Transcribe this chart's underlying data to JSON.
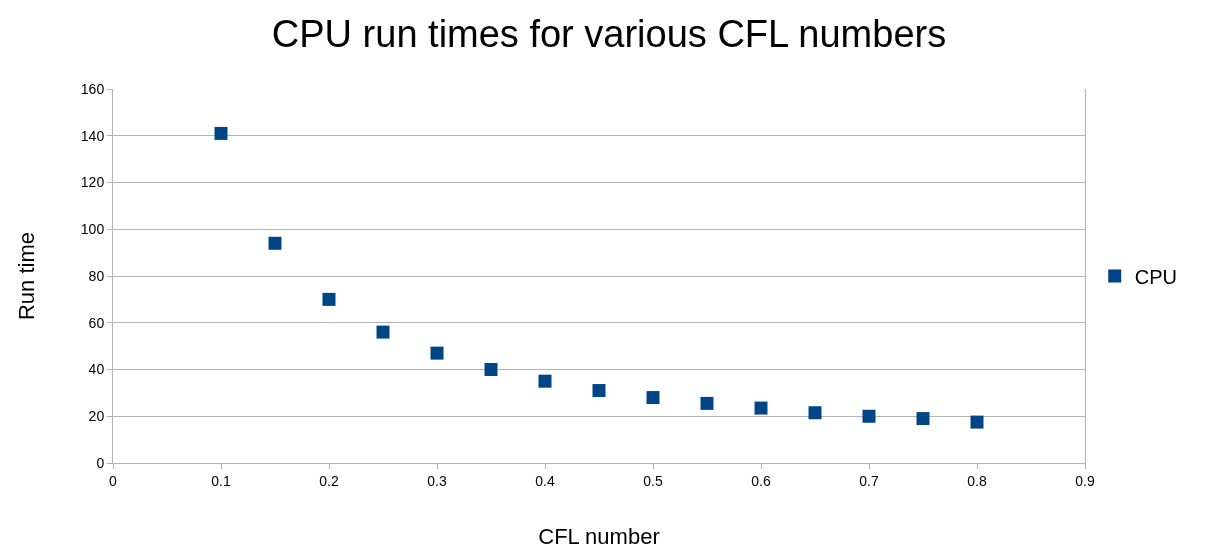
{
  "chart_data": {
    "type": "scatter",
    "title": "CPU run times for various CFL numbers",
    "xlabel": "CFL number",
    "ylabel": "Run time",
    "x": [
      0.1,
      0.15,
      0.2,
      0.25,
      0.3,
      0.35,
      0.4,
      0.45,
      0.5,
      0.55,
      0.6,
      0.65,
      0.7,
      0.75,
      0.8
    ],
    "series": [
      {
        "name": "CPU",
        "color": "#004586",
        "values": [
          141,
          94,
          70,
          56,
          47,
          40,
          35,
          31,
          28,
          25.5,
          23.5,
          21.5,
          20,
          19,
          17.5
        ]
      }
    ],
    "xlim": [
      0,
      0.9
    ],
    "xticks": [
      0,
      0.1,
      0.2,
      0.3,
      0.4,
      0.5,
      0.6,
      0.7,
      0.8,
      0.9
    ],
    "ylim": [
      0,
      160
    ],
    "yticks": [
      0,
      20,
      40,
      60,
      80,
      100,
      120,
      140,
      160
    ],
    "grid": "y",
    "legend": "right",
    "marker": "square"
  }
}
